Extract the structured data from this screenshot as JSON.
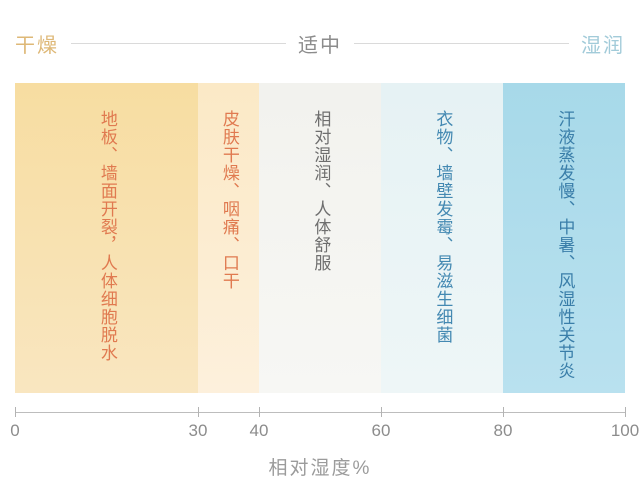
{
  "header": {
    "zones": [
      {
        "label": "干燥",
        "color": "#deb877"
      },
      {
        "label": "适中",
        "color": "#8c8c8c"
      },
      {
        "label": "湿润",
        "color": "#a2cbd9"
      }
    ]
  },
  "chart_data": {
    "type": "heatmap",
    "title": "",
    "xlabel": "相对湿度%",
    "xlim": [
      0,
      100
    ],
    "x_ticks": [
      0,
      30,
      40,
      60,
      80,
      100
    ],
    "zones": [
      "干燥",
      "适中",
      "湿润"
    ],
    "bands": [
      {
        "range": [
          0,
          30
        ],
        "zone": "干燥",
        "text": "地板、墙面开裂，人体细胞脱水",
        "bg": "#f8e0ab",
        "text_color": "#e07a50"
      },
      {
        "range": [
          30,
          40
        ],
        "zone": "干燥",
        "text": "皮肤干燥、咽痛、口干",
        "bg": "#fcecd2",
        "text_color": "#e07a50"
      },
      {
        "range": [
          40,
          60
        ],
        "zone": "适中",
        "text": "相对湿润、人体舒服",
        "bg": "#f4f4f1",
        "text_color": "#6e6e6e"
      },
      {
        "range": [
          60,
          80
        ],
        "zone": "湿润",
        "text": "衣物、墙壁发霉、易滋生细菌",
        "bg": "#e9f4f5",
        "text_color": "#4489b2"
      },
      {
        "range": [
          80,
          100
        ],
        "zone": "湿润",
        "text": "汗液蒸发慢、中暑、风湿性关节炎",
        "bg": "#aedcec",
        "text_color": "#3a7ea9"
      }
    ]
  },
  "axis": {
    "tick_labels": [
      "0",
      "30",
      "40",
      "60",
      "80",
      "100"
    ],
    "title": "相对湿度%"
  }
}
